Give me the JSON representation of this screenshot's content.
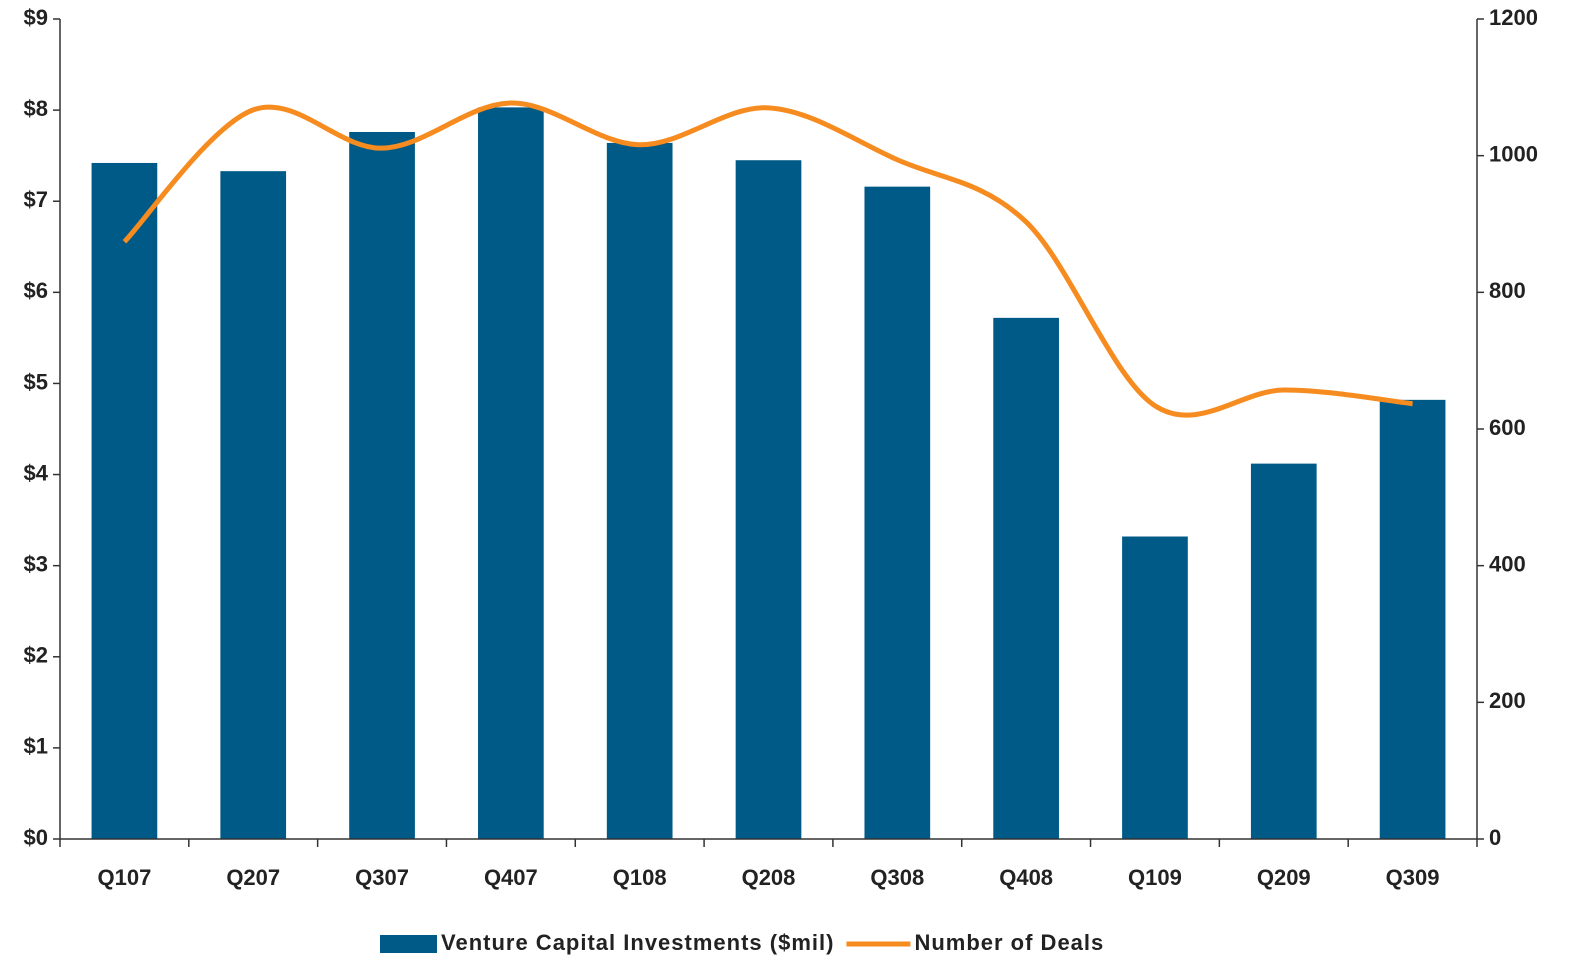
{
  "chart_data": {
    "type": "bar_line",
    "categories": [
      "Q107",
      "Q207",
      "Q307",
      "Q407",
      "Q108",
      "Q208",
      "Q308",
      "Q408",
      "Q109",
      "Q209",
      "Q309"
    ],
    "series": [
      {
        "name": "Venture Capital Investments ($mil)",
        "color": "#005a87",
        "type": "bar",
        "values": [
          7.42,
          7.33,
          7.76,
          8.03,
          7.64,
          7.45,
          7.16,
          5.72,
          3.32,
          4.12,
          4.82
        ]
      },
      {
        "name": "Number of Deals",
        "color": "#f68b1f",
        "type": "line",
        "axis": "y2",
        "smooth": true,
        "values": [
          874,
          1067,
          1011,
          1077,
          1016,
          1070,
          994,
          903,
          634,
          657,
          637
        ]
      }
    ],
    "ylim": [
      0,
      9
    ],
    "yticks": [
      {
        "value": 0,
        "label": "$0"
      },
      {
        "value": 1,
        "label": "$1"
      },
      {
        "value": 2,
        "label": "$2"
      },
      {
        "value": 3,
        "label": "$3"
      },
      {
        "value": 4,
        "label": "$4"
      },
      {
        "value": 5,
        "label": "$5"
      },
      {
        "value": 6,
        "label": "$6"
      },
      {
        "value": 7,
        "label": "$7"
      },
      {
        "value": 8,
        "label": "$8"
      },
      {
        "value": 9,
        "label": "$9"
      }
    ],
    "y2lim": [
      0,
      1200
    ],
    "y2ticks": [
      0,
      200,
      400,
      600,
      800,
      1000,
      1200
    ],
    "legend": "bottom"
  }
}
